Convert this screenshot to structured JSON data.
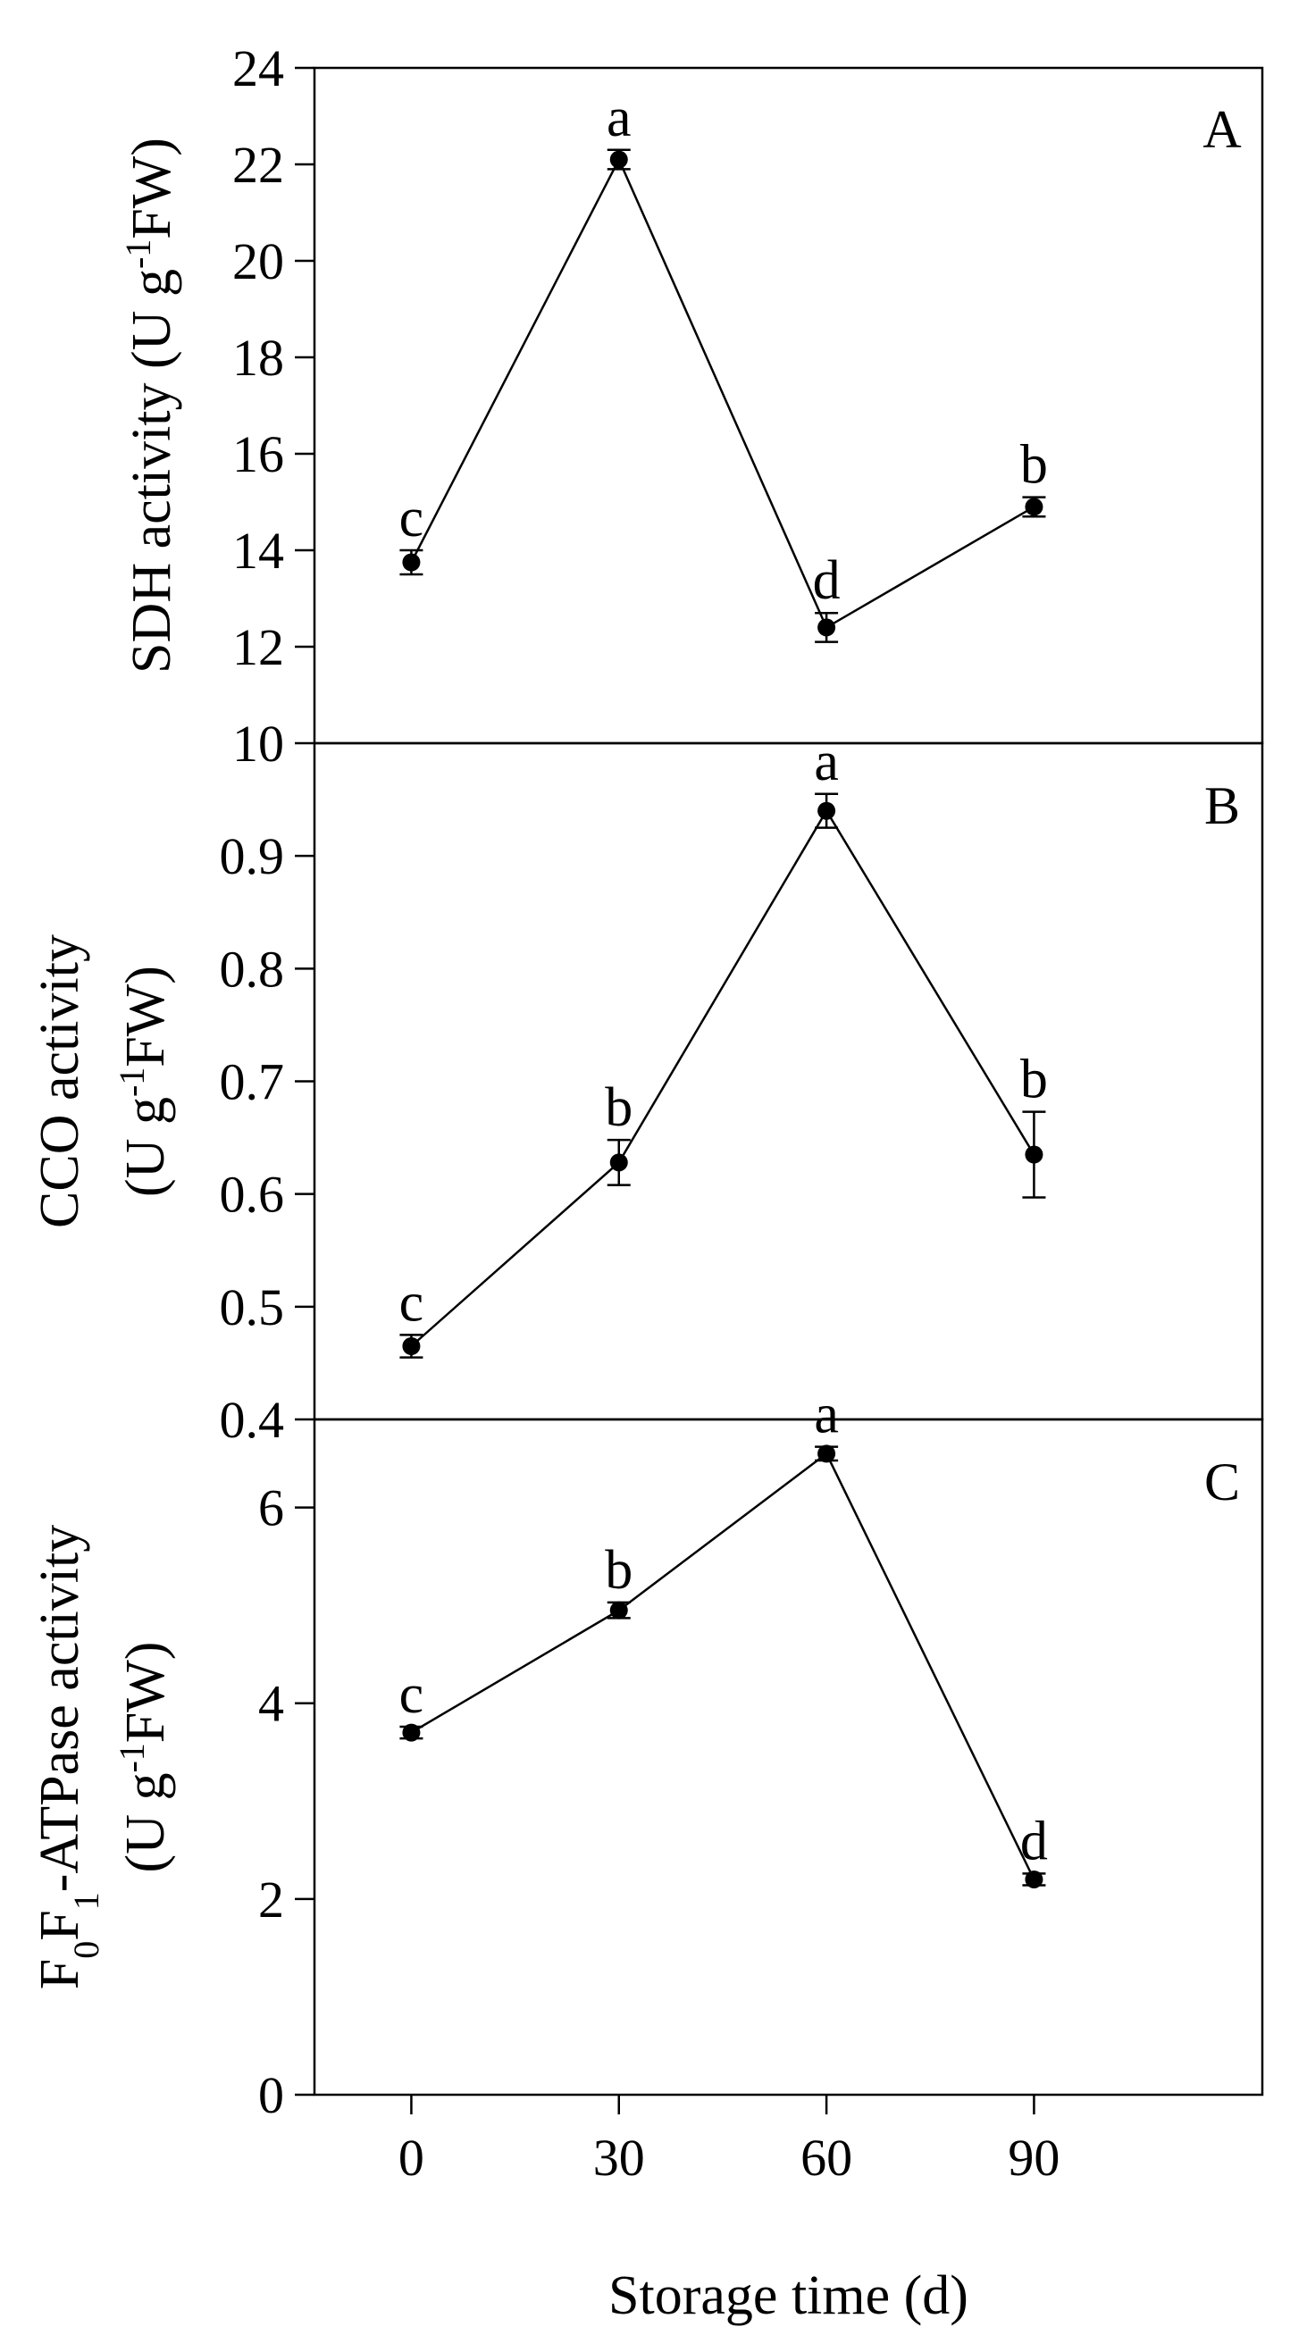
{
  "chart_data": [
    {
      "type": "line",
      "panel": "A",
      "ylabel": "SDH activity (U g-1FW)",
      "x": [
        0,
        30,
        60,
        90
      ],
      "values": [
        13.75,
        22.1,
        12.4,
        14.9
      ],
      "errors": [
        0.25,
        0.2,
        0.3,
        0.2
      ],
      "letters": [
        "c",
        "a",
        "d",
        "b"
      ],
      "ylim": [
        10,
        24
      ],
      "yticks": [
        "10",
        "12",
        "14",
        "16",
        "18",
        "20",
        "22",
        "24"
      ]
    },
    {
      "type": "line",
      "panel": "B",
      "ylabel": "CCO activity (U g-1FW)",
      "ylabel_lines": [
        "CCO activity",
        "(U g-1FW)"
      ],
      "x": [
        0,
        30,
        60,
        90
      ],
      "values": [
        0.465,
        0.628,
        0.94,
        0.635
      ],
      "errors": [
        0.01,
        0.02,
        0.015,
        0.038
      ],
      "letters": [
        "c",
        "b",
        "a",
        "b"
      ],
      "ylim": [
        0.4,
        1.0
      ],
      "yticks": [
        "0.4",
        "0.5",
        "0.6",
        "0.7",
        "0.8",
        "0.9"
      ]
    },
    {
      "type": "line",
      "panel": "C",
      "ylabel": "F0F1-ATPase activity (U g-1FW)",
      "ylabel_lines": [
        "F0F1-ATPase activity",
        "(U g-1FW)"
      ],
      "x": [
        0,
        30,
        60,
        90
      ],
      "values": [
        3.7,
        4.95,
        6.55,
        2.2
      ],
      "errors": [
        0.06,
        0.08,
        0.07,
        0.06
      ],
      "letters": [
        "c",
        "b",
        "a",
        "d"
      ],
      "ylim": [
        0,
        6.9
      ],
      "yticks": [
        "0",
        "2",
        "4",
        "6"
      ]
    }
  ],
  "xaxis": {
    "label": "Storage time (d)",
    "ticks": [
      "0",
      "30",
      "60",
      "90"
    ],
    "xlim": [
      -14,
      123
    ]
  }
}
